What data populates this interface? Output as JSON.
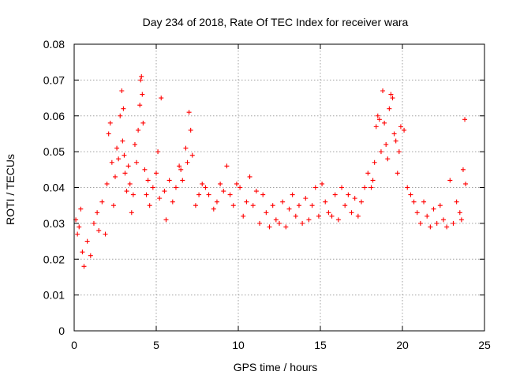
{
  "chart_data": {
    "type": "scatter",
    "title": "Day 234 of 2018, Rate Of TEC Index for receiver wara",
    "xlabel": "GPS time / hours",
    "ylabel": "ROTI / TECUs",
    "xlim": [
      0,
      25
    ],
    "ylim": [
      0,
      0.08
    ],
    "x_ticks": [
      "0",
      "5",
      "10",
      "15",
      "20",
      "25"
    ],
    "y_ticks": [
      "0",
      "0.01",
      "0.02",
      "0.03",
      "0.04",
      "0.05",
      "0.06",
      "0.07",
      "0.08"
    ],
    "grid": true,
    "marker": "+",
    "series_color": "#ff0000",
    "series": [
      {
        "x": [
          0.1,
          0.2,
          0.3,
          0.4,
          0.5,
          0.6,
          0.8,
          1.0,
          1.2,
          1.4,
          1.5,
          1.7,
          1.9,
          2.0,
          2.1,
          2.2,
          2.3,
          2.4,
          2.5,
          2.6,
          2.7,
          2.8,
          2.9,
          2.95,
          3.0,
          3.05,
          3.1,
          3.2,
          3.3,
          3.4,
          3.5,
          3.6,
          3.7,
          3.8,
          3.9,
          4.0,
          4.05,
          4.1,
          4.15,
          4.2,
          4.3,
          4.4,
          4.5,
          4.6,
          4.8,
          5.0,
          5.1,
          5.2,
          5.3,
          5.5,
          5.6,
          5.8,
          6.0,
          6.2,
          6.4,
          6.5,
          6.6,
          6.8,
          6.9,
          7.0,
          7.1,
          7.2,
          7.4,
          7.6,
          7.8,
          8.0,
          8.2,
          8.5,
          8.7,
          8.9,
          9.1,
          9.3,
          9.5,
          9.7,
          9.9,
          10.1,
          10.3,
          10.5,
          10.7,
          10.9,
          11.1,
          11.3,
          11.5,
          11.7,
          11.9,
          12.1,
          12.3,
          12.5,
          12.7,
          12.9,
          13.1,
          13.3,
          13.5,
          13.7,
          13.9,
          14.1,
          14.3,
          14.5,
          14.7,
          14.9,
          15.1,
          15.3,
          15.5,
          15.7,
          15.9,
          16.1,
          16.3,
          16.5,
          16.7,
          16.9,
          17.1,
          17.3,
          17.5,
          17.7,
          17.9,
          18.1,
          18.2,
          18.3,
          18.4,
          18.5,
          18.6,
          18.7,
          18.8,
          18.9,
          19.0,
          19.1,
          19.2,
          19.3,
          19.4,
          19.5,
          19.6,
          19.7,
          19.8,
          19.9,
          20.1,
          20.3,
          20.5,
          20.7,
          20.9,
          21.1,
          21.3,
          21.5,
          21.7,
          21.9,
          22.1,
          22.3,
          22.5,
          22.7,
          22.9,
          23.1,
          23.3,
          23.5,
          23.6,
          23.7,
          23.8,
          23.85
        ],
        "y": [
          0.031,
          0.027,
          0.029,
          0.034,
          0.022,
          0.018,
          0.025,
          0.021,
          0.03,
          0.033,
          0.028,
          0.036,
          0.027,
          0.041,
          0.055,
          0.058,
          0.047,
          0.035,
          0.043,
          0.051,
          0.048,
          0.06,
          0.067,
          0.053,
          0.062,
          0.049,
          0.044,
          0.039,
          0.046,
          0.041,
          0.033,
          0.038,
          0.052,
          0.047,
          0.056,
          0.063,
          0.07,
          0.071,
          0.066,
          0.058,
          0.045,
          0.038,
          0.042,
          0.035,
          0.04,
          0.044,
          0.05,
          0.037,
          0.065,
          0.039,
          0.031,
          0.042,
          0.036,
          0.04,
          0.046,
          0.045,
          0.042,
          0.051,
          0.047,
          0.061,
          0.056,
          0.049,
          0.035,
          0.038,
          0.041,
          0.04,
          0.038,
          0.034,
          0.036,
          0.041,
          0.039,
          0.046,
          0.038,
          0.035,
          0.041,
          0.04,
          0.032,
          0.036,
          0.043,
          0.035,
          0.039,
          0.03,
          0.038,
          0.033,
          0.029,
          0.035,
          0.031,
          0.03,
          0.036,
          0.029,
          0.034,
          0.038,
          0.032,
          0.035,
          0.03,
          0.037,
          0.031,
          0.035,
          0.04,
          0.032,
          0.041,
          0.036,
          0.033,
          0.032,
          0.038,
          0.031,
          0.04,
          0.035,
          0.038,
          0.033,
          0.037,
          0.032,
          0.036,
          0.04,
          0.044,
          0.04,
          0.042,
          0.047,
          0.057,
          0.06,
          0.059,
          0.05,
          0.067,
          0.058,
          0.052,
          0.048,
          0.062,
          0.066,
          0.065,
          0.055,
          0.053,
          0.044,
          0.05,
          0.057,
          0.056,
          0.04,
          0.038,
          0.036,
          0.033,
          0.03,
          0.036,
          0.032,
          0.029,
          0.034,
          0.03,
          0.035,
          0.031,
          0.029,
          0.042,
          0.03,
          0.036,
          0.033,
          0.031,
          0.045,
          0.059,
          0.041
        ]
      }
    ]
  }
}
